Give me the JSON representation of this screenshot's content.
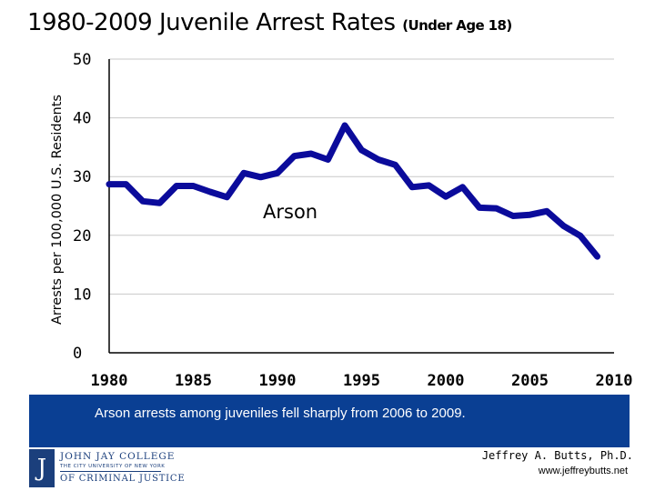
{
  "page": {
    "title_main": "1980-2009 Juvenile Arrest Rates",
    "title_sub": "(Under Age 18)",
    "banner_text": "Arson arrests among juveniles fell sharply from 2006 to 2009.",
    "author": "Jeffrey A. Butts, Ph.D.",
    "website": "www.jeffreybutts.net",
    "logo": {
      "mark": "J",
      "line1": "JOHN JAY COLLEGE",
      "line2": "THE CITY UNIVERSITY OF NEW YORK",
      "line3": "OF CRIMINAL JUSTICE"
    }
  },
  "colors": {
    "series": "#0b0b9b",
    "banner": "#0a3f93",
    "axis": "#000000",
    "grid": "#c8c8c8"
  },
  "chart_data": {
    "type": "line",
    "title": "1980-2009 Juvenile Arrest Rates (Under Age 18)",
    "xlabel": "",
    "ylabel": "Arrests per 100,000 U.S. Residents",
    "xlim": [
      1980,
      2010
    ],
    "ylim": [
      0,
      50
    ],
    "x_ticks": [
      1980,
      1985,
      1990,
      1995,
      2000,
      2005,
      2010
    ],
    "y_ticks": [
      0,
      10,
      20,
      30,
      40,
      50
    ],
    "grid": "horizontal",
    "series": [
      {
        "name": "Arson",
        "label": "Arson",
        "x": [
          1980,
          1981,
          1982,
          1983,
          1984,
          1985,
          1986,
          1987,
          1988,
          1989,
          1990,
          1991,
          1992,
          1993,
          1994,
          1995,
          1996,
          1997,
          1998,
          1999,
          2000,
          2001,
          2002,
          2003,
          2004,
          2005,
          2006,
          2007,
          2008,
          2009
        ],
        "values": [
          28.7,
          28.7,
          25.8,
          25.5,
          28.4,
          28.4,
          27.4,
          26.5,
          30.6,
          29.9,
          30.6,
          33.5,
          33.9,
          32.9,
          38.7,
          34.5,
          32.9,
          32.0,
          28.2,
          28.5,
          26.6,
          28.2,
          24.7,
          24.6,
          23.3,
          23.5,
          24.1,
          21.6,
          19.9,
          16.4
        ]
      }
    ]
  }
}
